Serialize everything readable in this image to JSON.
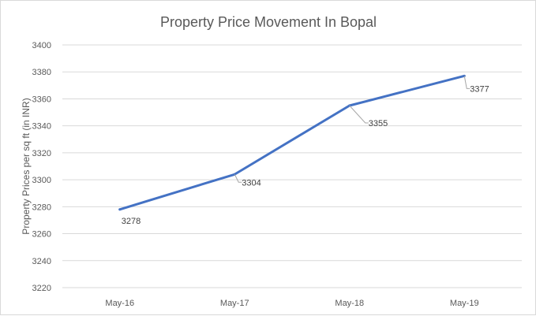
{
  "chart_data": {
    "type": "line",
    "title": "Property Price Movement In Bopal",
    "xlabel": "",
    "ylabel": "Property Prices per sq ft (in INR)",
    "categories": [
      "May-16",
      "May-17",
      "May-18",
      "May-19"
    ],
    "series": [
      {
        "values": [
          3278,
          3304,
          3355,
          3377
        ],
        "color": "#4472c4"
      }
    ],
    "ylim": [
      3220,
      3400
    ],
    "yticks": [
      3220,
      3240,
      3260,
      3280,
      3300,
      3320,
      3340,
      3360,
      3380,
      3400
    ],
    "grid": true,
    "legend": "none",
    "data_labels": [
      "3278",
      "3304",
      "3355",
      "3377"
    ],
    "colors": {
      "gridline": "#d9d9d9",
      "text": "#595959",
      "leader_line": "#a6a6a6"
    }
  }
}
